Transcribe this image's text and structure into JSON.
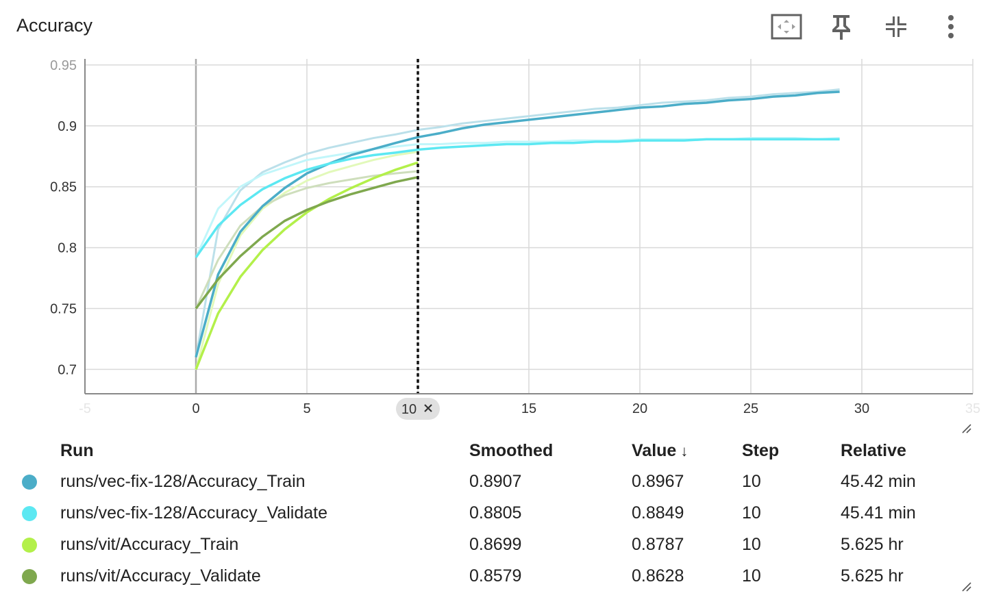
{
  "card": {
    "title": "Accuracy"
  },
  "toolbar": [
    {
      "name": "fit-domain-icon"
    },
    {
      "name": "pin-icon"
    },
    {
      "name": "collapse-icon"
    },
    {
      "name": "more-vert-icon"
    }
  ],
  "chart_data": {
    "type": "line",
    "title": "Accuracy",
    "xlabel": "",
    "ylabel": "",
    "xlim": [
      -5,
      35
    ],
    "ylim": [
      0.68,
      0.955
    ],
    "xticks": [
      -5,
      0,
      5,
      10,
      15,
      20,
      25,
      30,
      35
    ],
    "yticks": [
      0.7,
      0.75,
      0.8,
      0.85,
      0.9,
      0.95
    ],
    "grid": true,
    "cursor_step": 10,
    "cursor_label": "10",
    "series": [
      {
        "name": "runs/vec-fix-128/Accuracy_Train",
        "color": "#4badc8",
        "x": [
          0,
          1,
          2,
          3,
          4,
          5,
          6,
          7,
          8,
          9,
          10,
          11,
          12,
          13,
          14,
          15,
          16,
          17,
          18,
          19,
          20,
          21,
          22,
          23,
          24,
          25,
          26,
          27,
          28,
          29
        ],
        "smoothed": [
          0.71,
          0.778,
          0.813,
          0.834,
          0.849,
          0.861,
          0.869,
          0.876,
          0.881,
          0.886,
          0.8907,
          0.894,
          0.898,
          0.901,
          0.903,
          0.905,
          0.907,
          0.909,
          0.911,
          0.913,
          0.915,
          0.916,
          0.918,
          0.919,
          0.921,
          0.922,
          0.924,
          0.925,
          0.927,
          0.928
        ],
        "values": [
          0.71,
          0.815,
          0.847,
          0.862,
          0.87,
          0.877,
          0.882,
          0.886,
          0.89,
          0.893,
          0.8967,
          0.899,
          0.902,
          0.904,
          0.906,
          0.908,
          0.91,
          0.912,
          0.914,
          0.915,
          0.917,
          0.919,
          0.92,
          0.921,
          0.923,
          0.924,
          0.926,
          0.927,
          0.928,
          0.93
        ]
      },
      {
        "name": "runs/vec-fix-128/Accuracy_Validate",
        "color": "#5ce8f2",
        "x": [
          0,
          1,
          2,
          3,
          4,
          5,
          6,
          7,
          8,
          9,
          10,
          11,
          12,
          13,
          14,
          15,
          16,
          17,
          18,
          19,
          20,
          21,
          22,
          23,
          24,
          25,
          26,
          27,
          28,
          29
        ],
        "smoothed": [
          0.792,
          0.818,
          0.835,
          0.848,
          0.857,
          0.864,
          0.869,
          0.873,
          0.876,
          0.878,
          0.8805,
          0.882,
          0.883,
          0.884,
          0.885,
          0.885,
          0.886,
          0.886,
          0.887,
          0.887,
          0.888,
          0.888,
          0.888,
          0.889,
          0.889,
          0.889,
          0.889,
          0.889,
          0.889,
          0.889
        ],
        "values": [
          0.792,
          0.832,
          0.85,
          0.86,
          0.866,
          0.872,
          0.875,
          0.878,
          0.881,
          0.883,
          0.8849,
          0.885,
          0.886,
          0.886,
          0.887,
          0.887,
          0.887,
          0.888,
          0.888,
          0.888,
          0.889,
          0.889,
          0.889,
          0.889,
          0.889,
          0.89,
          0.89,
          0.89,
          0.889,
          0.89
        ]
      },
      {
        "name": "runs/vit/Accuracy_Train",
        "color": "#b3f04a",
        "x": [
          0,
          1,
          2,
          3,
          4,
          5,
          6,
          7,
          8,
          9,
          10
        ],
        "smoothed": [
          0.7,
          0.746,
          0.776,
          0.798,
          0.815,
          0.829,
          0.84,
          0.849,
          0.857,
          0.864,
          0.8699
        ],
        "values": [
          0.7,
          0.77,
          0.81,
          0.832,
          0.845,
          0.855,
          0.862,
          0.867,
          0.872,
          0.876,
          0.8787
        ]
      },
      {
        "name": "runs/vit/Accuracy_Validate",
        "color": "#7fa84e",
        "x": [
          0,
          1,
          2,
          3,
          4,
          5,
          6,
          7,
          8,
          9,
          10
        ],
        "smoothed": [
          0.75,
          0.774,
          0.793,
          0.809,
          0.822,
          0.831,
          0.838,
          0.844,
          0.849,
          0.854,
          0.8579
        ],
        "values": [
          0.75,
          0.79,
          0.818,
          0.834,
          0.843,
          0.849,
          0.853,
          0.856,
          0.859,
          0.861,
          0.8628
        ]
      }
    ]
  },
  "table": {
    "headers": {
      "run": "Run",
      "smoothed": "Smoothed",
      "value": "Value",
      "value_sort": "↓",
      "step": "Step",
      "relative": "Relative"
    },
    "rows": [
      {
        "color": "#4badc8",
        "run": "runs/vec-fix-128/Accuracy_Train",
        "smoothed": "0.8907",
        "value": "0.8967",
        "step": "10",
        "relative": "45.42 min"
      },
      {
        "color": "#5ce8f2",
        "run": "runs/vec-fix-128/Accuracy_Validate",
        "smoothed": "0.8805",
        "value": "0.8849",
        "step": "10",
        "relative": "45.41 min"
      },
      {
        "color": "#b3f04a",
        "run": "runs/vit/Accuracy_Train",
        "smoothed": "0.8699",
        "value": "0.8787",
        "step": "10",
        "relative": "5.625 hr"
      },
      {
        "color": "#7fa84e",
        "run": "runs/vit/Accuracy_Validate",
        "smoothed": "0.8579",
        "value": "0.8628",
        "step": "10",
        "relative": "5.625 hr"
      }
    ]
  }
}
